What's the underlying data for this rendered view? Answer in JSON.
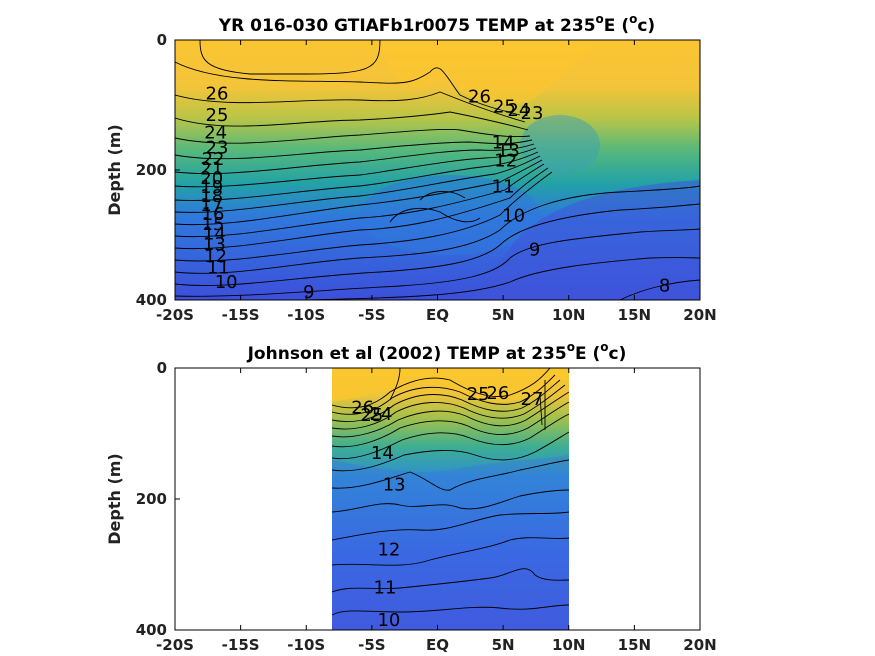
{
  "chart_data": [
    {
      "type": "contour",
      "title_main": "YR 016-030 GTIAFb1r0075 TEMP at 235",
      "title_deg": "o",
      "title_unit_open": "E (",
      "title_unit_deg": "o",
      "title_tail": "c)",
      "ylabel": "Depth (m)",
      "xlim": [
        -20,
        20
      ],
      "ylim": [
        0,
        400
      ],
      "y_inverted": true,
      "x_ticks": [
        -20,
        -15,
        -10,
        -5,
        0,
        5,
        10,
        15,
        20
      ],
      "x_tick_labels": [
        "-20S",
        "-15S",
        "-10S",
        "-5S",
        "EQ",
        "5N",
        "10N",
        "15N",
        "20N"
      ],
      "y_ticks": [
        0,
        200,
        400
      ],
      "y_tick_labels": [
        "0",
        "200",
        "400"
      ],
      "data_extent": [
        -20,
        20
      ],
      "contour_labels": [
        {
          "text": "26",
          "lat": -16.8,
          "depth": 82
        },
        {
          "text": "25",
          "lat": -16.8,
          "depth": 115
        },
        {
          "text": "24",
          "lat": -16.9,
          "depth": 142
        },
        {
          "text": "23",
          "lat": -16.8,
          "depth": 165
        },
        {
          "text": "22",
          "lat": -17.1,
          "depth": 183
        },
        {
          "text": "21",
          "lat": -17.2,
          "depth": 198
        },
        {
          "text": "20",
          "lat": -17.2,
          "depth": 212
        },
        {
          "text": "19",
          "lat": -17.2,
          "depth": 226
        },
        {
          "text": "18",
          "lat": -17.2,
          "depth": 240
        },
        {
          "text": "17",
          "lat": -17.2,
          "depth": 254
        },
        {
          "text": "16",
          "lat": -17.1,
          "depth": 268
        },
        {
          "text": "15",
          "lat": -17.1,
          "depth": 283
        },
        {
          "text": "14",
          "lat": -17.0,
          "depth": 298
        },
        {
          "text": "13",
          "lat": -17.0,
          "depth": 314
        },
        {
          "text": "12",
          "lat": -16.9,
          "depth": 332
        },
        {
          "text": "11",
          "lat": -16.7,
          "depth": 350
        },
        {
          "text": "10",
          "lat": -16.1,
          "depth": 372
        },
        {
          "text": "9",
          "lat": -9.8,
          "depth": 388
        },
        {
          "text": "26",
          "lat": 3.2,
          "depth": 87
        },
        {
          "text": "25",
          "lat": 5.1,
          "depth": 102
        },
        {
          "text": "24",
          "lat": 6.2,
          "depth": 108
        },
        {
          "text": "23",
          "lat": 7.2,
          "depth": 112
        },
        {
          "text": "14",
          "lat": 5.0,
          "depth": 158
        },
        {
          "text": "13",
          "lat": 5.4,
          "depth": 170
        },
        {
          "text": "12",
          "lat": 5.2,
          "depth": 185
        },
        {
          "text": "11",
          "lat": 5.0,
          "depth": 225
        },
        {
          "text": "10",
          "lat": 5.8,
          "depth": 270
        },
        {
          "text": "9",
          "lat": 7.4,
          "depth": 322
        },
        {
          "text": "8",
          "lat": 17.3,
          "depth": 378
        }
      ]
    },
    {
      "type": "contour",
      "title_main": "Johnson et al (2002) TEMP at 235",
      "title_deg": "o",
      "title_unit_open": "E (",
      "title_unit_deg": "o",
      "title_tail": "c)",
      "ylabel": "Depth (m)",
      "xlim": [
        -20,
        20
      ],
      "ylim": [
        0,
        400
      ],
      "y_inverted": true,
      "x_ticks": [
        -20,
        -15,
        -10,
        -5,
        0,
        5,
        10,
        15,
        20
      ],
      "x_tick_labels": [
        "-20S",
        "-15S",
        "-10S",
        "-5S",
        "EQ",
        "5N",
        "10N",
        "15N",
        "20N"
      ],
      "y_ticks": [
        0,
        200,
        400
      ],
      "y_tick_labels": [
        "0",
        "200",
        "400"
      ],
      "data_extent": [
        -8,
        10
      ],
      "contour_labels": [
        {
          "text": "26",
          "lat": -5.7,
          "depth": 60
        },
        {
          "text": "25",
          "lat": -5.0,
          "depth": 72
        },
        {
          "text": "24",
          "lat": -4.3,
          "depth": 70
        },
        {
          "text": "14",
          "lat": -4.2,
          "depth": 130
        },
        {
          "text": "13",
          "lat": -3.3,
          "depth": 178
        },
        {
          "text": "25",
          "lat": 3.1,
          "depth": 40
        },
        {
          "text": "26",
          "lat": 4.6,
          "depth": 38
        },
        {
          "text": "27",
          "lat": 7.2,
          "depth": 47
        },
        {
          "text": "12",
          "lat": -3.7,
          "depth": 277
        },
        {
          "text": "11",
          "lat": -4.0,
          "depth": 335
        },
        {
          "text": "10",
          "lat": -3.7,
          "depth": 385
        }
      ]
    }
  ]
}
